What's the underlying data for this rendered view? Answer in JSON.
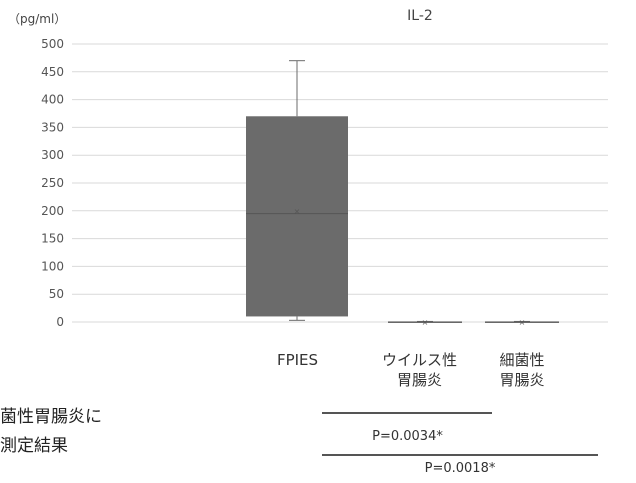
{
  "chart_data": {
    "type": "box",
    "title": "IL-2",
    "ylabel": "（pg/ml）",
    "ylim": [
      0,
      500
    ],
    "yticks": [
      0,
      50,
      100,
      150,
      200,
      250,
      300,
      350,
      400,
      450,
      500
    ],
    "categories": [
      {
        "label_lines": [
          "FPIES"
        ],
        "q1": 10,
        "median": 195,
        "q3": 370,
        "mean": 200,
        "whisker_low": 3,
        "whisker_high": 470
      },
      {
        "label_lines": [
          "ウイルス性",
          "胃腸炎"
        ],
        "q1": 0,
        "median": 0,
        "q3": 1,
        "mean": 0,
        "whisker_low": 0,
        "whisker_high": 1
      },
      {
        "label_lines": [
          "細菌性",
          "胃腸炎"
        ],
        "q1": 0,
        "median": 0,
        "q3": 1,
        "mean": 0,
        "whisker_low": 0,
        "whisker_high": 1
      }
    ],
    "significance": [
      {
        "from": 0,
        "to": 1,
        "label": "P=0.0034*"
      },
      {
        "from": 0,
        "to": 2,
        "label": "P=0.0018*"
      }
    ],
    "colors": {
      "box": "#6b6b6b",
      "grid": "#d9d9d9",
      "axis_text": "#555555",
      "sig_line": "#555555"
    }
  },
  "side_text": {
    "line1": "菌性胃腸炎に",
    "line2": "測定結果"
  }
}
